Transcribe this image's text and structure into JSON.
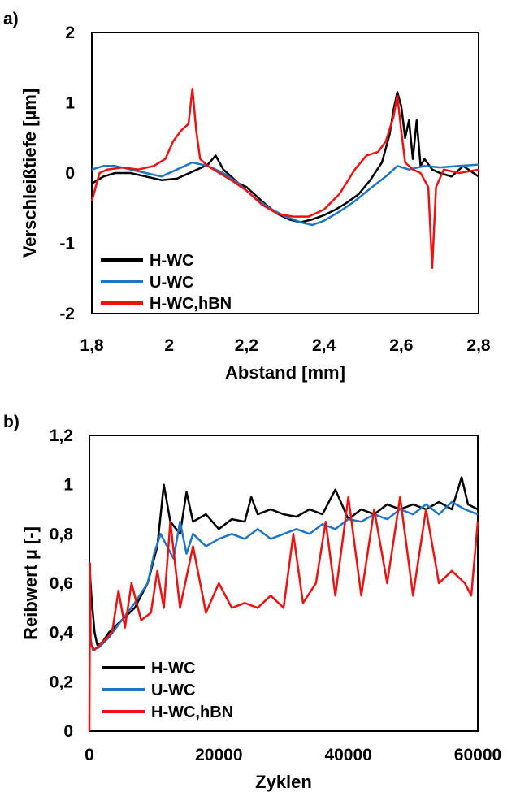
{
  "chart_data": [
    {
      "panel_label": "a)",
      "type": "line",
      "title": "",
      "xlabel": "Abstand [mm]",
      "ylabel": "Verschleißtiefe [µm]",
      "xlim": [
        1.8,
        2.8
      ],
      "ylim": [
        -2,
        2
      ],
      "xticks": [
        "1,8",
        "2",
        "2,2",
        "2,4",
        "2,6",
        "2,8"
      ],
      "yticks": [
        "2",
        "1",
        "0",
        "-1",
        "-2"
      ],
      "grid": false,
      "legend": "bottom-left",
      "series": [
        {
          "name": "H-WC",
          "color": "#000000",
          "x": [
            1.8,
            1.83,
            1.86,
            1.9,
            1.94,
            1.98,
            2.02,
            2.06,
            2.1,
            2.12,
            2.14,
            2.16,
            2.18,
            2.2,
            2.22,
            2.25,
            2.28,
            2.31,
            2.34,
            2.37,
            2.4,
            2.43,
            2.46,
            2.49,
            2.52,
            2.55,
            2.57,
            2.58,
            2.59,
            2.6,
            2.61,
            2.62,
            2.63,
            2.64,
            2.65,
            2.66,
            2.68,
            2.7,
            2.73,
            2.76,
            2.8
          ],
          "y": [
            -0.15,
            -0.05,
            0.0,
            0.0,
            -0.05,
            -0.1,
            -0.08,
            0.02,
            0.12,
            0.25,
            0.05,
            -0.05,
            -0.15,
            -0.2,
            -0.3,
            -0.45,
            -0.58,
            -0.66,
            -0.7,
            -0.66,
            -0.6,
            -0.52,
            -0.42,
            -0.3,
            -0.1,
            0.15,
            0.55,
            0.9,
            1.15,
            0.95,
            0.5,
            0.75,
            0.2,
            0.75,
            0.1,
            0.2,
            0.05,
            0.0,
            -0.05,
            0.1,
            -0.05
          ]
        },
        {
          "name": "U-WC",
          "color": "#1f77c4",
          "x": [
            1.8,
            1.83,
            1.86,
            1.9,
            1.94,
            1.98,
            2.02,
            2.06,
            2.1,
            2.14,
            2.18,
            2.22,
            2.26,
            2.3,
            2.34,
            2.37,
            2.4,
            2.44,
            2.48,
            2.52,
            2.56,
            2.59,
            2.62,
            2.66,
            2.7,
            2.75,
            2.8
          ],
          "y": [
            0.05,
            0.1,
            0.1,
            0.05,
            0.0,
            -0.05,
            0.05,
            0.15,
            0.1,
            0.0,
            -0.15,
            -0.35,
            -0.5,
            -0.62,
            -0.7,
            -0.74,
            -0.68,
            -0.55,
            -0.4,
            -0.22,
            -0.05,
            0.1,
            0.05,
            0.1,
            0.08,
            0.1,
            0.12
          ]
        },
        {
          "name": "H-WC,hBN",
          "color": "#ee1111",
          "x": [
            1.8,
            1.82,
            1.84,
            1.88,
            1.92,
            1.96,
            1.99,
            2.01,
            2.03,
            2.05,
            2.06,
            2.07,
            2.08,
            2.1,
            2.13,
            2.16,
            2.2,
            2.24,
            2.28,
            2.32,
            2.36,
            2.4,
            2.44,
            2.48,
            2.51,
            2.54,
            2.56,
            2.58,
            2.59,
            2.6,
            2.61,
            2.63,
            2.65,
            2.67,
            2.68,
            2.69,
            2.71,
            2.75,
            2.8
          ],
          "y": [
            -0.4,
            0.0,
            0.05,
            0.08,
            0.05,
            0.1,
            0.2,
            0.45,
            0.6,
            0.7,
            1.2,
            0.6,
            0.2,
            0.1,
            0.0,
            -0.1,
            -0.25,
            -0.45,
            -0.58,
            -0.62,
            -0.62,
            -0.52,
            -0.3,
            0.05,
            0.25,
            0.3,
            0.45,
            0.8,
            1.1,
            0.6,
            0.15,
            0.05,
            0.0,
            -0.2,
            -1.35,
            -0.2,
            0.05,
            0.0,
            0.05
          ]
        }
      ]
    },
    {
      "panel_label": "b)",
      "type": "line",
      "title": "",
      "xlabel": "Zyklen",
      "ylabel": "Reibwert µ [-]",
      "xlim": [
        0,
        60000
      ],
      "ylim": [
        0,
        1.2
      ],
      "xticks": [
        "0",
        "20000",
        "40000",
        "60000"
      ],
      "yticks": [
        "1,2",
        "1",
        "0,8",
        "0,6",
        "0,4",
        "0,2",
        "0"
      ],
      "grid": false,
      "legend": "bottom-left",
      "series": [
        {
          "name": "H-WC",
          "color": "#000000",
          "x": [
            0,
            300,
            800,
            1200,
            2000,
            3000,
            5000,
            7000,
            9000,
            10500,
            11500,
            12500,
            14000,
            15000,
            16000,
            18000,
            20000,
            22000,
            24000,
            25000,
            26000,
            28000,
            30000,
            32000,
            34000,
            36000,
            38000,
            40000,
            42000,
            44000,
            46000,
            48000,
            50000,
            52000,
            54000,
            56000,
            57500,
            58500,
            60000
          ],
          "y": [
            0.68,
            0.55,
            0.4,
            0.35,
            0.36,
            0.4,
            0.45,
            0.5,
            0.6,
            0.75,
            1.0,
            0.85,
            0.8,
            0.97,
            0.85,
            0.88,
            0.82,
            0.86,
            0.85,
            0.95,
            0.88,
            0.9,
            0.88,
            0.87,
            0.9,
            0.88,
            0.98,
            0.86,
            0.9,
            0.88,
            0.92,
            0.9,
            0.92,
            0.9,
            0.93,
            0.9,
            1.03,
            0.92,
            0.9
          ]
        },
        {
          "name": "U-WC",
          "color": "#1f77c4",
          "x": [
            0,
            500,
            1500,
            3000,
            5000,
            7000,
            9000,
            10000,
            11000,
            12000,
            13000,
            14000,
            15000,
            16000,
            18000,
            20000,
            22000,
            24000,
            26000,
            28000,
            30000,
            32000,
            34000,
            36000,
            38000,
            40000,
            42000,
            44000,
            46000,
            48000,
            50000,
            52000,
            54000,
            56000,
            58000,
            60000
          ],
          "y": [
            0.4,
            0.33,
            0.34,
            0.38,
            0.45,
            0.52,
            0.6,
            0.72,
            0.8,
            0.75,
            0.7,
            0.85,
            0.72,
            0.8,
            0.75,
            0.78,
            0.8,
            0.78,
            0.82,
            0.78,
            0.8,
            0.82,
            0.8,
            0.84,
            0.82,
            0.86,
            0.85,
            0.88,
            0.86,
            0.9,
            0.88,
            0.92,
            0.88,
            0.93,
            0.9,
            0.88
          ]
        },
        {
          "name": "H-WC,hBN",
          "color": "#ee1111",
          "x": [
            0,
            100,
            200,
            800,
            2000,
            3500,
            4500,
            5500,
            6500,
            8000,
            9500,
            10500,
            11500,
            12500,
            14000,
            16000,
            18000,
            20000,
            22000,
            24000,
            26000,
            28000,
            30000,
            31500,
            33000,
            35000,
            36500,
            38000,
            40000,
            42000,
            44000,
            46000,
            48000,
            50000,
            52000,
            54000,
            56000,
            58000,
            59000,
            60000
          ],
          "y": [
            0.0,
            0.68,
            0.35,
            0.33,
            0.36,
            0.4,
            0.57,
            0.42,
            0.6,
            0.45,
            0.48,
            0.65,
            0.5,
            0.85,
            0.5,
            0.75,
            0.48,
            0.6,
            0.5,
            0.52,
            0.5,
            0.55,
            0.5,
            0.8,
            0.52,
            0.6,
            0.85,
            0.55,
            0.95,
            0.55,
            0.9,
            0.6,
            0.95,
            0.55,
            0.9,
            0.6,
            0.65,
            0.6,
            0.55,
            0.85
          ]
        }
      ]
    }
  ]
}
